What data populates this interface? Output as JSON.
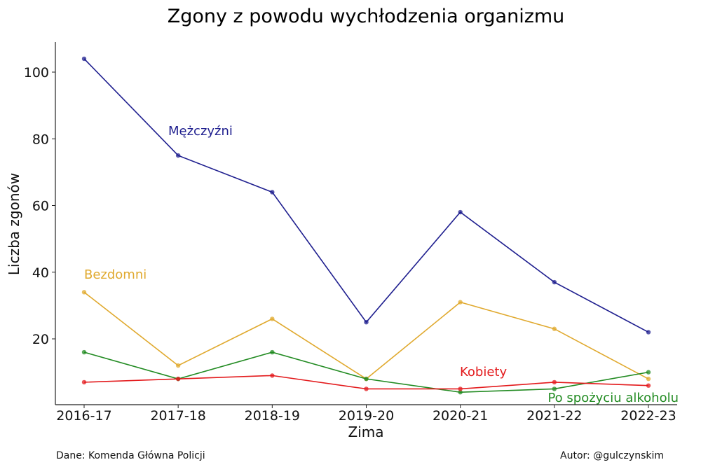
{
  "chart_data": {
    "type": "line",
    "title": "Zgony z powodu wychłodzenia organizmu",
    "xlabel": "Zima",
    "ylabel": "Liczba zgonów",
    "categories": [
      "2016-17",
      "2017-18",
      "2018-19",
      "2019-20",
      "2020-21",
      "2021-22",
      "2022-23"
    ],
    "yticks": [
      20,
      40,
      60,
      80,
      100
    ],
    "ylim": [
      0,
      109
    ],
    "grid": false,
    "series": [
      {
        "name": "Mężczyźni",
        "color": "#1f1f8f",
        "values": [
          104,
          75,
          64,
          25,
          58,
          37,
          22
        ]
      },
      {
        "name": "Bezdomni",
        "color": "#e0a92e",
        "values": [
          34,
          12,
          26,
          8,
          31,
          23,
          8
        ]
      },
      {
        "name": "Po spożyciu alkoholu",
        "color": "#228b22",
        "values": [
          16,
          8,
          16,
          8,
          4,
          5,
          10
        ]
      },
      {
        "name": "Kobiety",
        "color": "#e31a1c",
        "values": [
          7,
          8,
          9,
          5,
          5,
          7,
          6
        ]
      }
    ]
  },
  "footer": {
    "source": "Dane: Komenda Główna Policji",
    "author": "Autor: @gulczynskim"
  }
}
